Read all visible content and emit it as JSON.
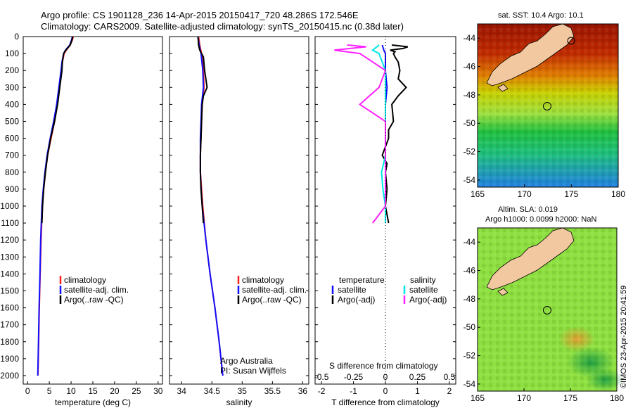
{
  "header": {
    "line1": "Argo profile: CS 1901128_236 14-Apr-2015 20150417_720 48.286S 172.546E",
    "line2": "Climatology: CARS2009. Satellite-adjusted climatology: synTS_20150415.nc (0.38d later)"
  },
  "colors": {
    "climatology": "#ff2020",
    "satellite": "#1010ff",
    "argo": "#000000",
    "t_satellite": "#1010ff",
    "s_satellite": "#00e5e5",
    "s_argo": "#ff20ff",
    "land": "#f2c8a0"
  },
  "legend_profiles": [
    "climatology",
    "satellite-adj. clim.",
    "Argo(..raw -QC)"
  ],
  "legend_diff": {
    "temperature_header": "temperature",
    "salinity_header": "salinity",
    "t_items": [
      "satellite",
      "Argo(-adj)"
    ],
    "s_items": [
      "satellite",
      "Argo(-adj)"
    ]
  },
  "credits": {
    "line1": "Argo Australia",
    "line2": "PI: Susan Wijffels"
  },
  "sst_map": {
    "title": "sat. SST: 10.4  Argo: 10.1"
  },
  "sla_map": {
    "title_line1": "Altim. SLA: 0.019",
    "title_line2": "Argo h1000: 0.0099 h2000: NaN"
  },
  "watermark": "©IMOS 23-Apr-2015 20:41:59",
  "chart_data": [
    {
      "type": "line",
      "xlabel": "temperature (deg C)",
      "ylabel": "",
      "xlim": [
        -1,
        31
      ],
      "ylim": [
        2050,
        0
      ],
      "xticks": [
        0,
        5,
        10,
        15,
        20,
        25,
        30
      ],
      "yticks": [
        0,
        100,
        200,
        300,
        400,
        500,
        600,
        700,
        800,
        900,
        1000,
        1100,
        1200,
        1300,
        1400,
        1500,
        1600,
        1700,
        1800,
        1900,
        2000
      ],
      "series": [
        {
          "name": "climatology",
          "y": [
            0,
            20,
            50,
            80,
            100,
            150,
            200,
            300,
            400,
            500,
            600,
            700,
            800,
            900,
            1000,
            1200,
            1400,
            1600,
            1800,
            2000
          ],
          "x": [
            10.5,
            10.3,
            9.8,
            8.9,
            8.4,
            8.0,
            7.8,
            7.3,
            6.8,
            6.2,
            5.4,
            4.6,
            4.1,
            3.7,
            3.4,
            3.1,
            2.9,
            2.7,
            2.55,
            2.4
          ]
        },
        {
          "name": "satellite-adj. clim.",
          "y": [
            0,
            20,
            50,
            80,
            100,
            150,
            200,
            300,
            400,
            500,
            600,
            700,
            800,
            900,
            1000,
            1200,
            1400,
            1600,
            1800,
            2000
          ],
          "x": [
            10.3,
            10.1,
            9.7,
            8.7,
            8.3,
            7.9,
            7.7,
            7.2,
            6.7,
            6.0,
            5.2,
            4.5,
            4.0,
            3.6,
            3.3,
            3.0,
            2.85,
            2.65,
            2.5,
            2.35
          ]
        },
        {
          "name": "Argo(..raw -QC)",
          "y": [
            0,
            20,
            50,
            80,
            100,
            150,
            200,
            300,
            400,
            500,
            600,
            700,
            800,
            900,
            1000,
            1100
          ],
          "x": [
            10.4,
            10.2,
            9.8,
            8.8,
            8.3,
            8.0,
            7.9,
            7.4,
            6.9,
            6.2,
            5.3,
            4.6,
            4.1,
            3.7,
            3.45,
            3.3
          ]
        }
      ]
    },
    {
      "type": "line",
      "xlabel": "salinity",
      "ylabel": "",
      "xlim": [
        33.8,
        36.1
      ],
      "ylim": [
        2050,
        0
      ],
      "xticks": [
        34,
        34.5,
        35,
        35.5,
        36
      ],
      "series": [
        {
          "name": "climatology",
          "y": [
            0,
            50,
            100,
            200,
            300,
            400,
            500,
            600,
            700,
            800,
            900,
            1000,
            1200,
            1400,
            1600,
            1800,
            2000
          ],
          "x": [
            34.28,
            34.3,
            34.33,
            34.36,
            34.37,
            34.34,
            34.33,
            34.32,
            34.31,
            34.31,
            34.33,
            34.35,
            34.4,
            34.47,
            34.55,
            34.62,
            34.68
          ]
        },
        {
          "name": "satellite-adj. clim.",
          "y": [
            0,
            50,
            100,
            200,
            300,
            400,
            500,
            600,
            700,
            800,
            900,
            1000,
            1200,
            1400,
            1600,
            1800,
            2000
          ],
          "x": [
            34.27,
            34.29,
            34.32,
            34.35,
            34.36,
            34.33,
            34.32,
            34.31,
            34.31,
            34.31,
            34.32,
            34.34,
            34.4,
            34.47,
            34.55,
            34.62,
            34.68
          ]
        },
        {
          "name": "Argo(..raw -QC)",
          "y": [
            0,
            50,
            80,
            120,
            200,
            250,
            300,
            350,
            400,
            500,
            600,
            700,
            800,
            900,
            1000,
            1100
          ],
          "x": [
            34.27,
            34.28,
            34.3,
            34.36,
            34.38,
            34.4,
            34.42,
            34.36,
            34.34,
            34.33,
            34.32,
            34.31,
            34.31,
            34.32,
            34.34,
            34.36
          ]
        }
      ]
    },
    {
      "type": "line",
      "xlabel": "T difference from climatology",
      "x2label": "S difference from climatology",
      "xlim": [
        -2.2,
        2.2
      ],
      "ylim": [
        2050,
        0
      ],
      "xticks": [
        -2,
        -1,
        0,
        1,
        2
      ],
      "x2ticks": [
        -0.5,
        -0.25,
        0,
        0.25,
        0.5
      ],
      "series": [
        {
          "name": "T satellite",
          "y": [
            50,
            80,
            100,
            200,
            300,
            400,
            500,
            600,
            700,
            800,
            900,
            1000,
            1100
          ],
          "x": [
            -0.1,
            -0.05,
            0.0,
            0.0,
            0.05,
            0.0,
            0.0,
            0.0,
            0.0,
            0.0,
            0.0,
            0.0,
            0.0
          ]
        },
        {
          "name": "T Argo(-adj)",
          "y": [
            50,
            60,
            70,
            80,
            90,
            100,
            120,
            150,
            200,
            250,
            300,
            350,
            400,
            500,
            550,
            600,
            650,
            700,
            750,
            800,
            900,
            1000,
            1100
          ],
          "x": [
            0.2,
            0.7,
            0.55,
            0.15,
            0.3,
            0.25,
            0.3,
            0.4,
            0.45,
            0.4,
            0.65,
            0.4,
            0.2,
            0.25,
            0.1,
            0.1,
            0.0,
            -0.1,
            0.05,
            0.0,
            0.05,
            0.0,
            0.1
          ]
        },
        {
          "name": "S satellite",
          "y": [
            50,
            80,
            100,
            200,
            300,
            400,
            500,
            600,
            700,
            800,
            900,
            1000,
            1100
          ],
          "x": [
            -0.05,
            -0.1,
            -0.05,
            0.0,
            0.0,
            0.0,
            0.0,
            0.0,
            0.0,
            -0.03,
            -0.02,
            0.0,
            0.0
          ]
        },
        {
          "name": "S Argo(-adj)",
          "y": [
            50,
            60,
            80,
            100,
            150,
            200,
            300,
            400,
            500,
            600,
            700,
            800,
            900,
            1000,
            1100
          ],
          "x": [
            -0.3,
            -0.15,
            -0.4,
            -0.2,
            -0.1,
            0.0,
            -0.05,
            -0.2,
            0.0,
            0.0,
            0.0,
            0.0,
            0.0,
            0.0,
            -0.1
          ]
        }
      ]
    }
  ],
  "maps": {
    "sst": {
      "lon": [
        165,
        170,
        175,
        180
      ],
      "lat": [
        -44,
        -46,
        -48,
        -50,
        -52,
        -54
      ]
    },
    "sla": {
      "lon": [
        165,
        170,
        175,
        180
      ],
      "lat": [
        -44,
        -46,
        -48,
        -50,
        -52,
        -54
      ]
    },
    "argo_position": {
      "lon": 172.546,
      "lat": -48.286
    }
  }
}
